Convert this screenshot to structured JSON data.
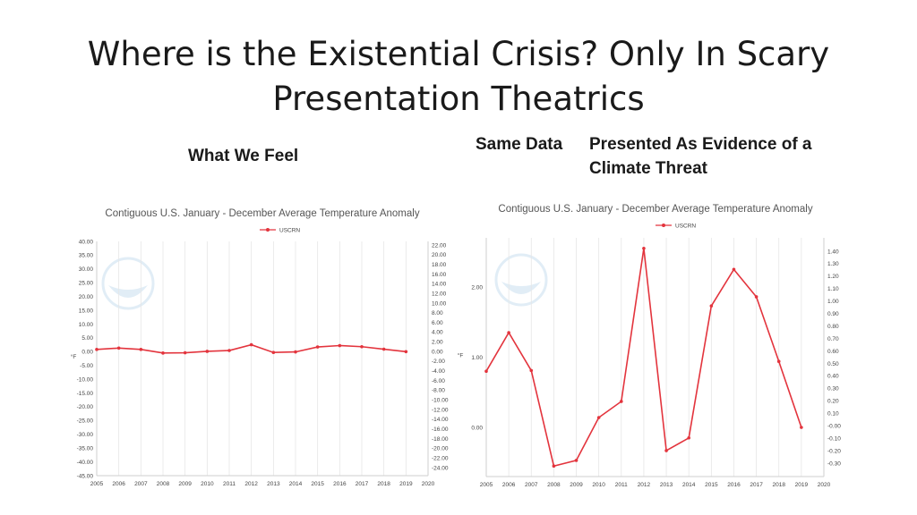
{
  "slide": {
    "title_line1": "Where is the Existential Crisis? Only In Scary",
    "title_line2": "Presentation Theatrics",
    "left_caption": "What We Feel",
    "right_caption_a": "Same Data",
    "right_caption_b": "Presented As Evidence of a",
    "right_caption_c": "Climate Threat"
  },
  "colors": {
    "series": "#e3343d",
    "grid": "#e6e6e6",
    "logo_blue": "#c9dff0"
  },
  "chart_data": [
    {
      "type": "line",
      "title": "Contiguous U.S. January - December Average Temperature Anomaly",
      "legend": "USCRN",
      "x": [
        2005,
        2006,
        2007,
        2008,
        2009,
        2010,
        2011,
        2012,
        2013,
        2014,
        2015,
        2016,
        2017,
        2018,
        2019
      ],
      "x_ticks": [
        "2005",
        "2006",
        "2007",
        "2008",
        "2009",
        "2010",
        "2011",
        "2012",
        "2013",
        "2014",
        "2015",
        "2016",
        "2017",
        "2018",
        "2019",
        "2020"
      ],
      "xlim": [
        2005,
        2020
      ],
      "ylabel": "°F",
      "ylim": [
        -45,
        40
      ],
      "y_ticks": [
        "40.00",
        "35.00",
        "30.00",
        "25.00",
        "20.00",
        "15.00",
        "10.00",
        "5.00",
        "0.00",
        "-5.00",
        "-10.00",
        "-15.00",
        "-20.00",
        "-25.00",
        "-30.00",
        "-35.00",
        "-40.00",
        "-45.00"
      ],
      "y2_ticks": [
        "22.00",
        "20.00",
        "18.00",
        "16.00",
        "14.00",
        "12.00",
        "10.00",
        "8.00",
        "6.00",
        "4.00",
        "2.00",
        "0.00",
        "-2.00",
        "-4.00",
        "-6.00",
        "-8.00",
        "-10.00",
        "-12.00",
        "-14.00",
        "-16.00",
        "-18.00",
        "-20.00",
        "-22.00",
        "-24.00"
      ],
      "y": [
        0.8,
        1.3,
        0.8,
        -0.5,
        -0.4,
        0.1,
        0.4,
        2.5,
        -0.3,
        -0.1,
        1.7,
        2.2,
        1.8,
        0.9,
        0.0
      ]
    },
    {
      "type": "line",
      "title": "Contiguous U.S. January - December Average Temperature Anomaly",
      "legend": "USCRN",
      "x": [
        2005,
        2006,
        2007,
        2008,
        2009,
        2010,
        2011,
        2012,
        2013,
        2014,
        2015,
        2016,
        2017,
        2018,
        2019
      ],
      "x_ticks": [
        "2005",
        "2006",
        "2007",
        "2008",
        "2009",
        "2010",
        "2011",
        "2012",
        "2013",
        "2014",
        "2015",
        "2016",
        "2017",
        "2018",
        "2019",
        "2020"
      ],
      "xlim": [
        2005,
        2020
      ],
      "ylabel": "°F",
      "ylim": [
        -0.7,
        2.7
      ],
      "y_ticks": [
        "2.00",
        "1.00",
        "0.00"
      ],
      "y2_ticks": [
        "1.40",
        "1.30",
        "1.20",
        "1.10",
        "1.00",
        "0.90",
        "0.80",
        "0.70",
        "0.60",
        "0.50",
        "0.40",
        "0.30",
        "0.20",
        "0.10",
        "-0.00",
        "-0.10",
        "-0.20",
        "-0.30"
      ],
      "y": [
        0.8,
        1.35,
        0.81,
        -0.55,
        -0.47,
        0.14,
        0.37,
        2.55,
        -0.33,
        -0.15,
        1.73,
        2.25,
        1.86,
        0.94,
        0.0
      ]
    }
  ]
}
